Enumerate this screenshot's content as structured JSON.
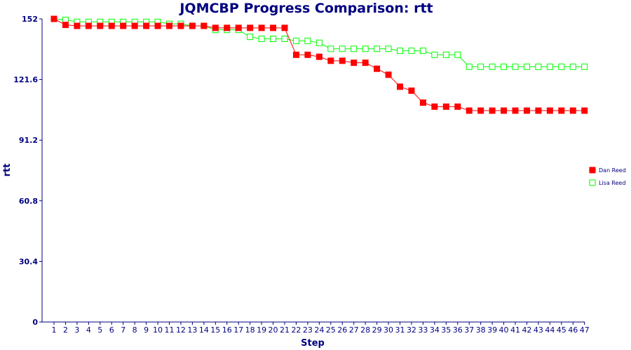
{
  "chart_data": {
    "type": "line",
    "title": "JQMCBP Progress Comparison: rtt",
    "xlabel": "Step",
    "ylabel": "rtt",
    "ylim": [
      0,
      152
    ],
    "yticks": [
      "0",
      "30.4",
      "60.8",
      "91.2",
      "121.6",
      "152"
    ],
    "ytick_values": [
      0,
      30.4,
      60.8,
      91.2,
      121.6,
      152
    ],
    "x": [
      1,
      2,
      3,
      4,
      5,
      6,
      7,
      8,
      9,
      10,
      11,
      12,
      13,
      14,
      15,
      16,
      17,
      18,
      19,
      20,
      21,
      22,
      23,
      24,
      25,
      26,
      27,
      28,
      29,
      30,
      31,
      32,
      33,
      34,
      35,
      36,
      37,
      38,
      39,
      40,
      41,
      42,
      43,
      44,
      45,
      46,
      47
    ],
    "grid": false,
    "legend_position": "right",
    "series": [
      {
        "name": "Dan Reed",
        "color": "#ff0000",
        "marker": "filled-square",
        "values": [
          152,
          149,
          148.5,
          148.5,
          148.5,
          148.5,
          148.5,
          148.5,
          148.5,
          148.5,
          148.5,
          148.5,
          148.5,
          148.5,
          147.5,
          147.5,
          147.5,
          147.5,
          147.5,
          147.5,
          147.5,
          134,
          134,
          133,
          131,
          131,
          130,
          130,
          127,
          124,
          118,
          116,
          110,
          108,
          108,
          108,
          106,
          106,
          106,
          106,
          106,
          106,
          106,
          106,
          106,
          106,
          106
        ]
      },
      {
        "name": "Lisa Reed",
        "color": "#00ff00",
        "marker": "hollow-square",
        "values": [
          152,
          151.5,
          150.5,
          150.5,
          150.5,
          150.5,
          150.5,
          150.5,
          150.5,
          150.5,
          149.5,
          149.5,
          148.5,
          148.5,
          146.5,
          146.5,
          146.5,
          143,
          142,
          142,
          142,
          141,
          141,
          140,
          137,
          137,
          137,
          137,
          137,
          137,
          136,
          136,
          136,
          134,
          134,
          134,
          128,
          128,
          128,
          128,
          128,
          128,
          128,
          128,
          128,
          128,
          128
        ]
      }
    ]
  }
}
